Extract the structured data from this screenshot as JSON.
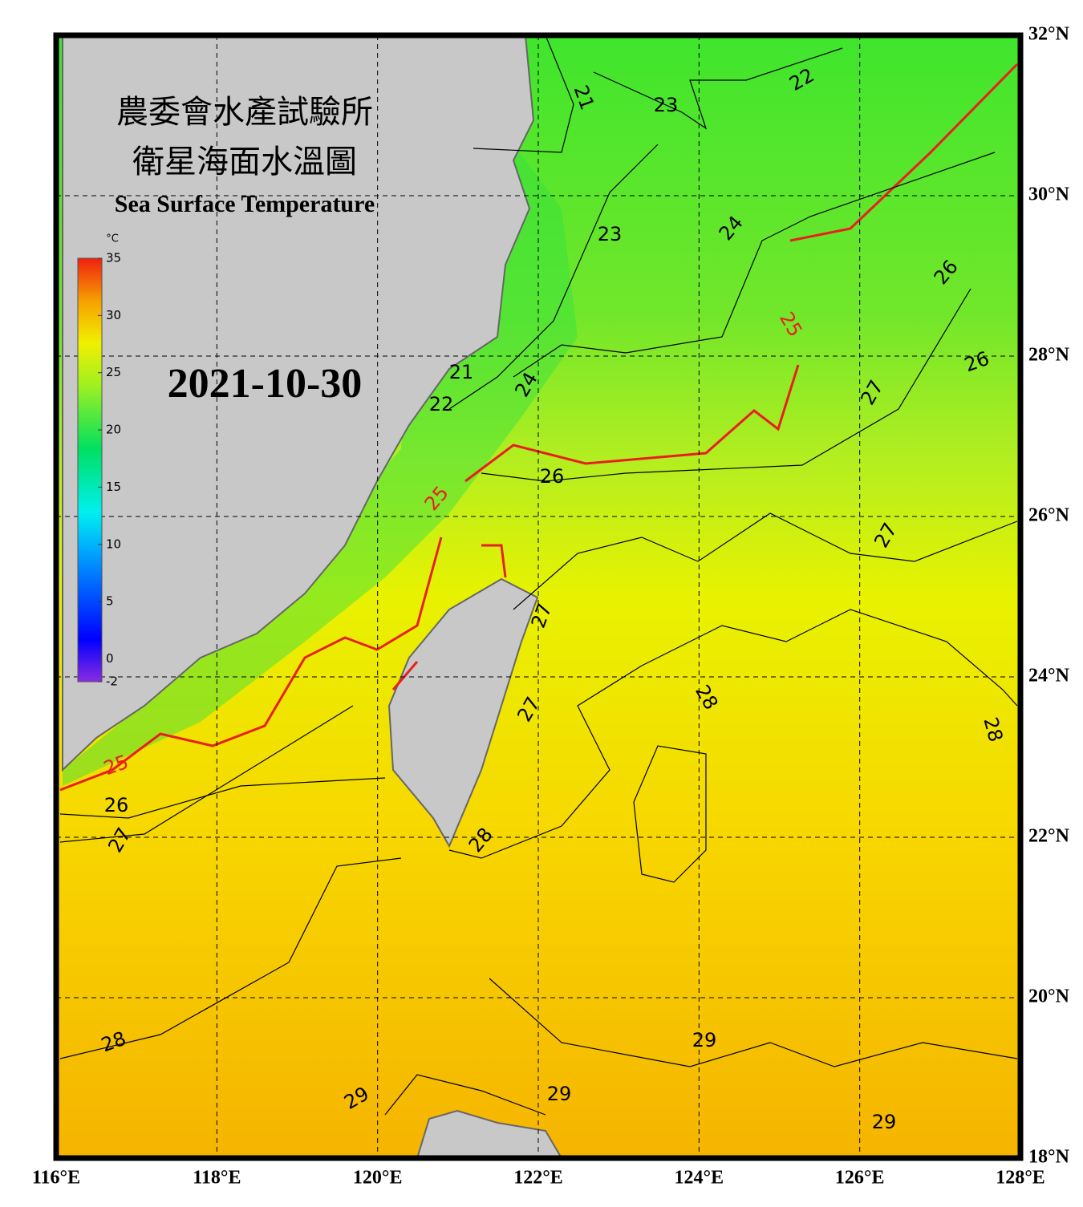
{
  "header": {
    "title_zh_1": "農委會水產試驗所",
    "title_zh_2": "衛星海面水溫圖",
    "title_en": "Sea Surface Temperature"
  },
  "date": "2021-10-30",
  "colorbar": {
    "unit": "°C",
    "range": [
      -2,
      35
    ],
    "ticks": [
      35,
      30,
      25,
      20,
      15,
      10,
      5,
      0,
      -2
    ]
  },
  "axes": {
    "xlim": [
      116,
      128
    ],
    "ylim": [
      18,
      32
    ],
    "xticks": [
      {
        "value": 116,
        "label": "116°E"
      },
      {
        "value": 118,
        "label": "118°E"
      },
      {
        "value": 120,
        "label": "120°E"
      },
      {
        "value": 122,
        "label": "122°E"
      },
      {
        "value": 124,
        "label": "124°E"
      },
      {
        "value": 126,
        "label": "126°E"
      },
      {
        "value": 128,
        "label": "128°E"
      }
    ],
    "yticks": [
      {
        "value": 18,
        "label": "18°N"
      },
      {
        "value": 20,
        "label": "20°N"
      },
      {
        "value": 22,
        "label": "22°N"
      },
      {
        "value": 24,
        "label": "24°N"
      },
      {
        "value": 26,
        "label": "26°N"
      },
      {
        "value": 28,
        "label": "28°N"
      },
      {
        "value": 30,
        "label": "30°N"
      },
      {
        "value": 32,
        "label": "32°N"
      }
    ]
  },
  "contour_labels": [
    21,
    22,
    23,
    23,
    24,
    25,
    26,
    26,
    27,
    21,
    22,
    24,
    25,
    26,
    27,
    27,
    28,
    27,
    28,
    25,
    26,
    27,
    28,
    28,
    29,
    29,
    29,
    29
  ],
  "highlight_contour": 25,
  "highlight_color": "#e8201c"
}
